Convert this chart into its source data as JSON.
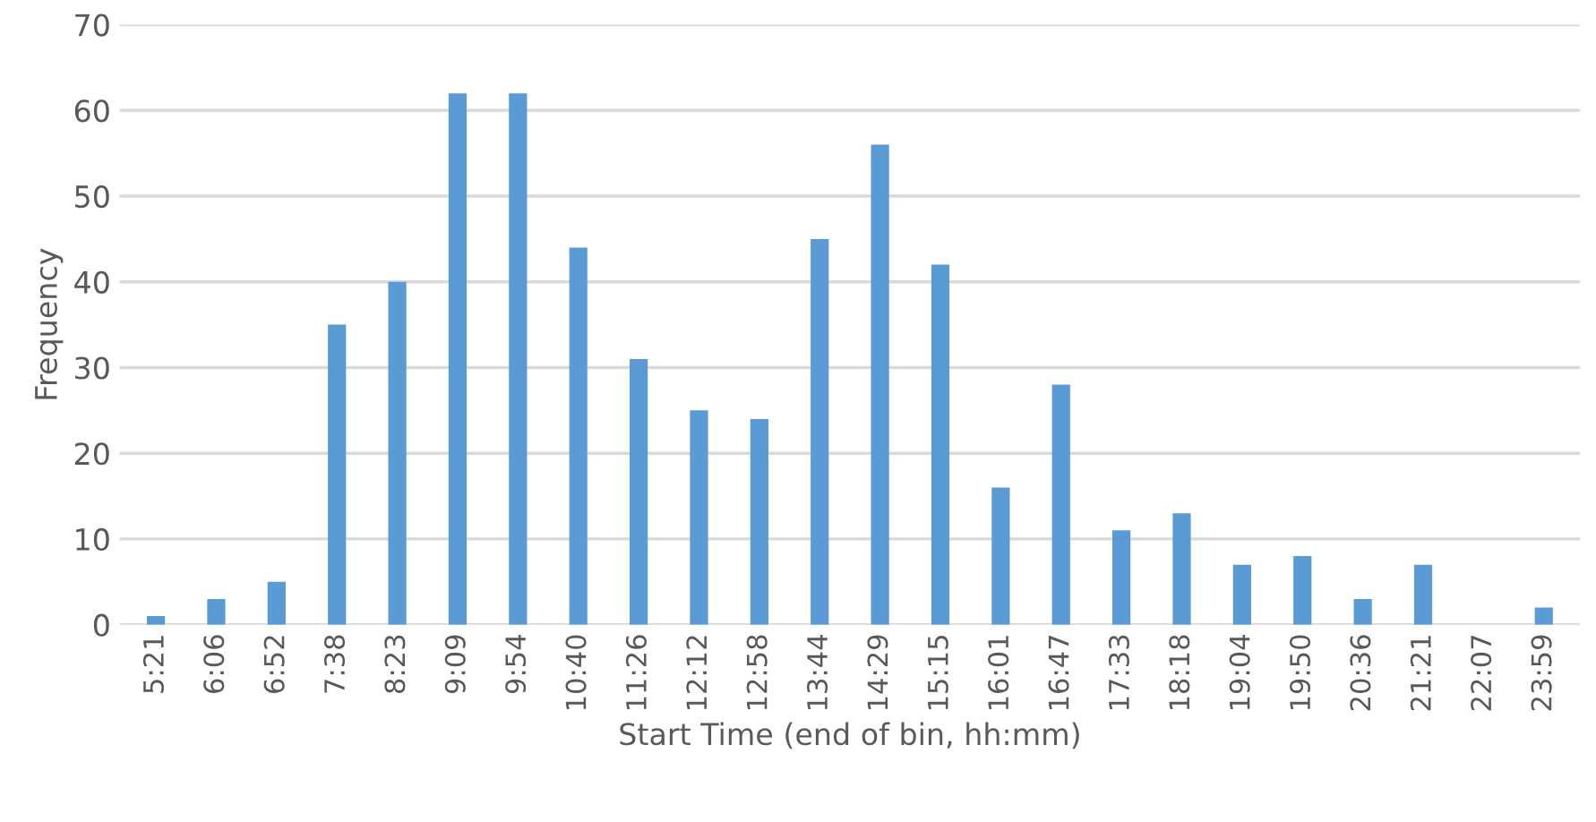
{
  "chart_data": {
    "type": "bar",
    "xlabel": "Start Time (end of bin, hh:mm)",
    "ylabel": "Frequency",
    "categories": [
      "5:21",
      "6:06",
      "6:52",
      "7:38",
      "8:23",
      "9:09",
      "9:54",
      "10:40",
      "11:26",
      "12:12",
      "12:58",
      "13:44",
      "14:29",
      "15:15",
      "16:01",
      "16:47",
      "17:33",
      "18:18",
      "19:04",
      "19:50",
      "20:36",
      "21:21",
      "22:07",
      "23:59"
    ],
    "values": [
      1,
      3,
      5,
      35,
      40,
      62,
      62,
      44,
      31,
      25,
      24,
      45,
      56,
      42,
      16,
      28,
      11,
      13,
      7,
      8,
      3,
      7,
      0,
      2
    ],
    "color": "#5b9bd5",
    "ylim": [
      0,
      70
    ],
    "yticks": [
      0,
      10,
      20,
      30,
      40,
      50,
      60,
      70
    ],
    "grid": "y",
    "legend": false
  }
}
